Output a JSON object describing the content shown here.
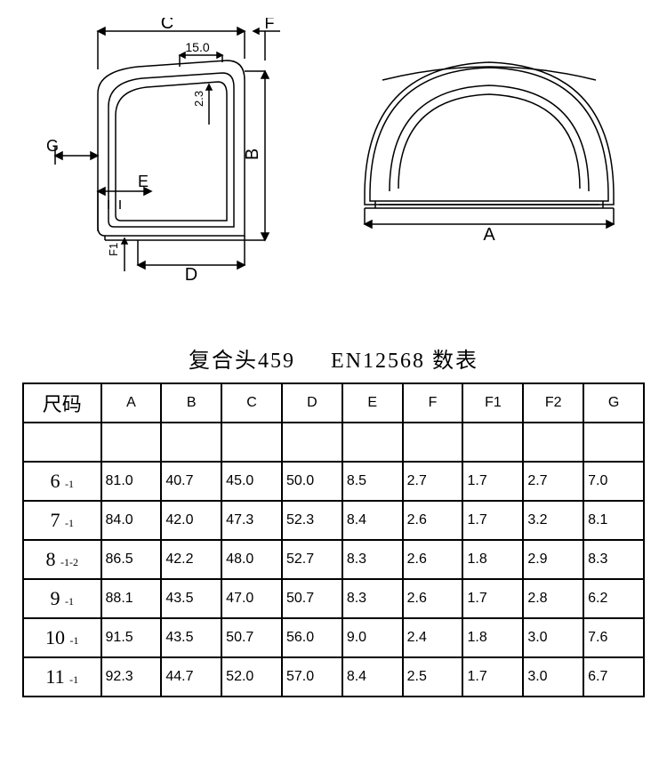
{
  "title_left": "复合头459",
  "title_right": "EN12568 数表",
  "diagram": {
    "left": {
      "dim_C": "C",
      "dim_F": "F",
      "dim_15": "15.0",
      "dim_23": "2.3",
      "dim_B": "B",
      "dim_G": "G",
      "dim_E": "E",
      "dim_F1": "F1",
      "dim_D": "D"
    },
    "right": {
      "dim_A": "A"
    },
    "stroke": "#000000",
    "stroke_width": 1.5
  },
  "table": {
    "headers": [
      "尺码",
      "A",
      "B",
      "C",
      "D",
      "E",
      "F",
      "F1",
      "F2",
      "G"
    ],
    "rows": [
      {
        "size_main": "6",
        "size_sup": "-1",
        "vals": [
          "81.0",
          "40.7",
          "45.0",
          "50.0",
          "8.5",
          "2.7",
          "1.7",
          "2.7",
          "7.0"
        ]
      },
      {
        "size_main": "7",
        "size_sup": "-1",
        "vals": [
          "84.0",
          "42.0",
          "47.3",
          "52.3",
          "8.4",
          "2.6",
          "1.7",
          "3.2",
          "8.1"
        ]
      },
      {
        "size_main": "8",
        "size_sup": "-1-2",
        "vals": [
          "86.5",
          "42.2",
          "48.0",
          "52.7",
          "8.3",
          "2.6",
          "1.8",
          "2.9",
          "8.3"
        ]
      },
      {
        "size_main": "9",
        "size_sup": "-1",
        "vals": [
          "88.1",
          "43.5",
          "47.0",
          "50.7",
          "8.3",
          "2.6",
          "1.7",
          "2.8",
          "6.2"
        ]
      },
      {
        "size_main": "10",
        "size_sup": "-1",
        "vals": [
          "91.5",
          "43.5",
          "50.7",
          "56.0",
          "9.0",
          "2.4",
          "1.8",
          "3.0",
          "7.6"
        ]
      },
      {
        "size_main": "11",
        "size_sup": "-1",
        "vals": [
          "92.3",
          "44.7",
          "52.0",
          "57.0",
          "8.4",
          "2.5",
          "1.7",
          "3.0",
          "6.7"
        ]
      }
    ]
  }
}
